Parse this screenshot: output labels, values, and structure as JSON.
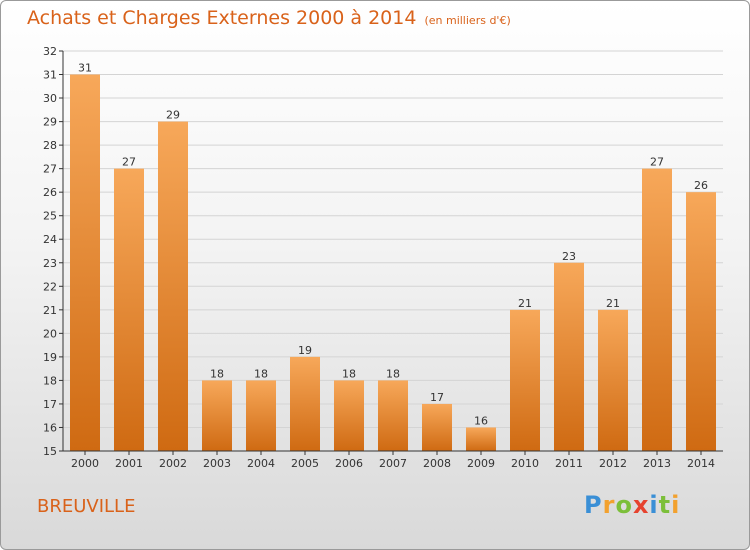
{
  "header": {
    "title": "Achats et Charges Externes 2000 à 2014",
    "subtitle": "(en milliers d'€)"
  },
  "footer": {
    "commune": "BREUVILLE",
    "logo": {
      "text": "Proxiti",
      "letters": [
        "P",
        "r",
        "o",
        "x",
        "i",
        "t",
        "i"
      ],
      "colors": [
        "#3a8fd6",
        "#f2a12e",
        "#7cbf3a",
        "#e6432f",
        "#3a8fd6",
        "#7cbf3a",
        "#f2a12e"
      ]
    }
  },
  "colors": {
    "bar_top": "#f7a85a",
    "bar_bottom": "#cf6a12",
    "text": "#d9621a",
    "axis": "#333333"
  },
  "chart_data": {
    "type": "bar",
    "title": "Achats et Charges Externes 2000 à 2014",
    "subtitle": "(en milliers d'€)",
    "categories": [
      "2000",
      "2001",
      "2002",
      "2003",
      "2004",
      "2005",
      "2006",
      "2007",
      "2008",
      "2009",
      "2010",
      "2011",
      "2012",
      "2013",
      "2014"
    ],
    "values": [
      31,
      27,
      29,
      18,
      18,
      19,
      18,
      18,
      17,
      16,
      21,
      23,
      21,
      27,
      26
    ],
    "ylim": [
      15,
      32
    ],
    "yticks": [
      15,
      16,
      17,
      18,
      19,
      20,
      21,
      22,
      23,
      24,
      25,
      26,
      27,
      28,
      29,
      30,
      31,
      32
    ],
    "grid": true,
    "data_labels": true
  }
}
